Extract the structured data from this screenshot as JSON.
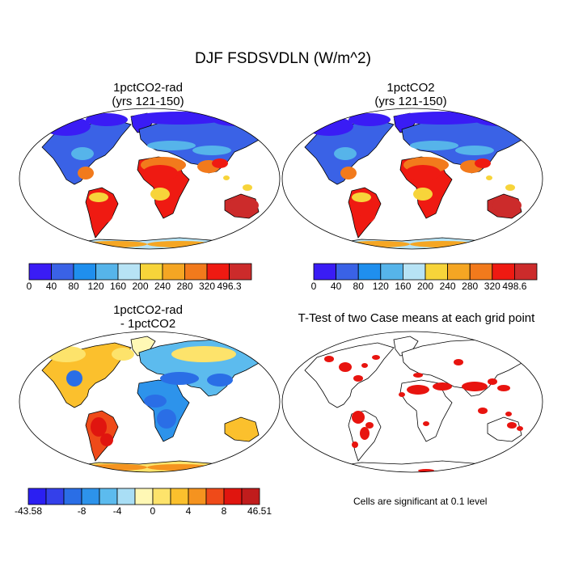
{
  "figure": {
    "title": "DJF FSDSVDLN (W/m^2)",
    "note": "Cells are significant at 0.1 level"
  },
  "panels": [
    {
      "id": "rad",
      "title_line1": "1pctCO2-rad",
      "title_line2": "(yrs 121-150)",
      "colorbar": {
        "colors": [
          "#3a1cf5",
          "#3a62e6",
          "#1f8fee",
          "#56b4ea",
          "#b7e3f5",
          "#f7d43a",
          "#f5a623",
          "#f27a1c",
          "#ef1a12",
          "#cc2b2b"
        ],
        "labels": [
          "0",
          "40",
          "80",
          "120",
          "160",
          "200",
          "240",
          "280",
          "320",
          "496.3"
        ]
      }
    },
    {
      "id": "ctl",
      "title_line1": "1pctCO2",
      "title_line2": "(yrs 121-150)",
      "colorbar": {
        "colors": [
          "#3a1cf5",
          "#3a62e6",
          "#1f8fee",
          "#56b4ea",
          "#b7e3f5",
          "#f7d43a",
          "#f5a623",
          "#f27a1c",
          "#ef1a12",
          "#cc2b2b"
        ],
        "labels": [
          "0",
          "40",
          "80",
          "120",
          "160",
          "200",
          "240",
          "280",
          "320",
          "498.6"
        ]
      }
    },
    {
      "id": "diff",
      "title_line1": "1pctCO2-rad",
      "title_line2": "- 1pctCO2",
      "colorbar": {
        "colors": [
          "#2b1ff2",
          "#3440ea",
          "#2a6ee6",
          "#2d93eb",
          "#5cbbee",
          "#a9def5",
          "#fff8b5",
          "#fde36b",
          "#fbc02d",
          "#f5931f",
          "#ef4a19",
          "#e0150f",
          "#c01c1c"
        ],
        "labels": [
          "-43.58",
          "-8",
          "-4",
          "0",
          "4",
          "8",
          "46.51"
        ]
      }
    },
    {
      "id": "ttest",
      "title_line1": "T-Test of two Case means at each grid point"
    }
  ],
  "colors": {
    "land_outline": "#000000",
    "significant": "#e8140f",
    "land_blank": "#ffffff"
  }
}
